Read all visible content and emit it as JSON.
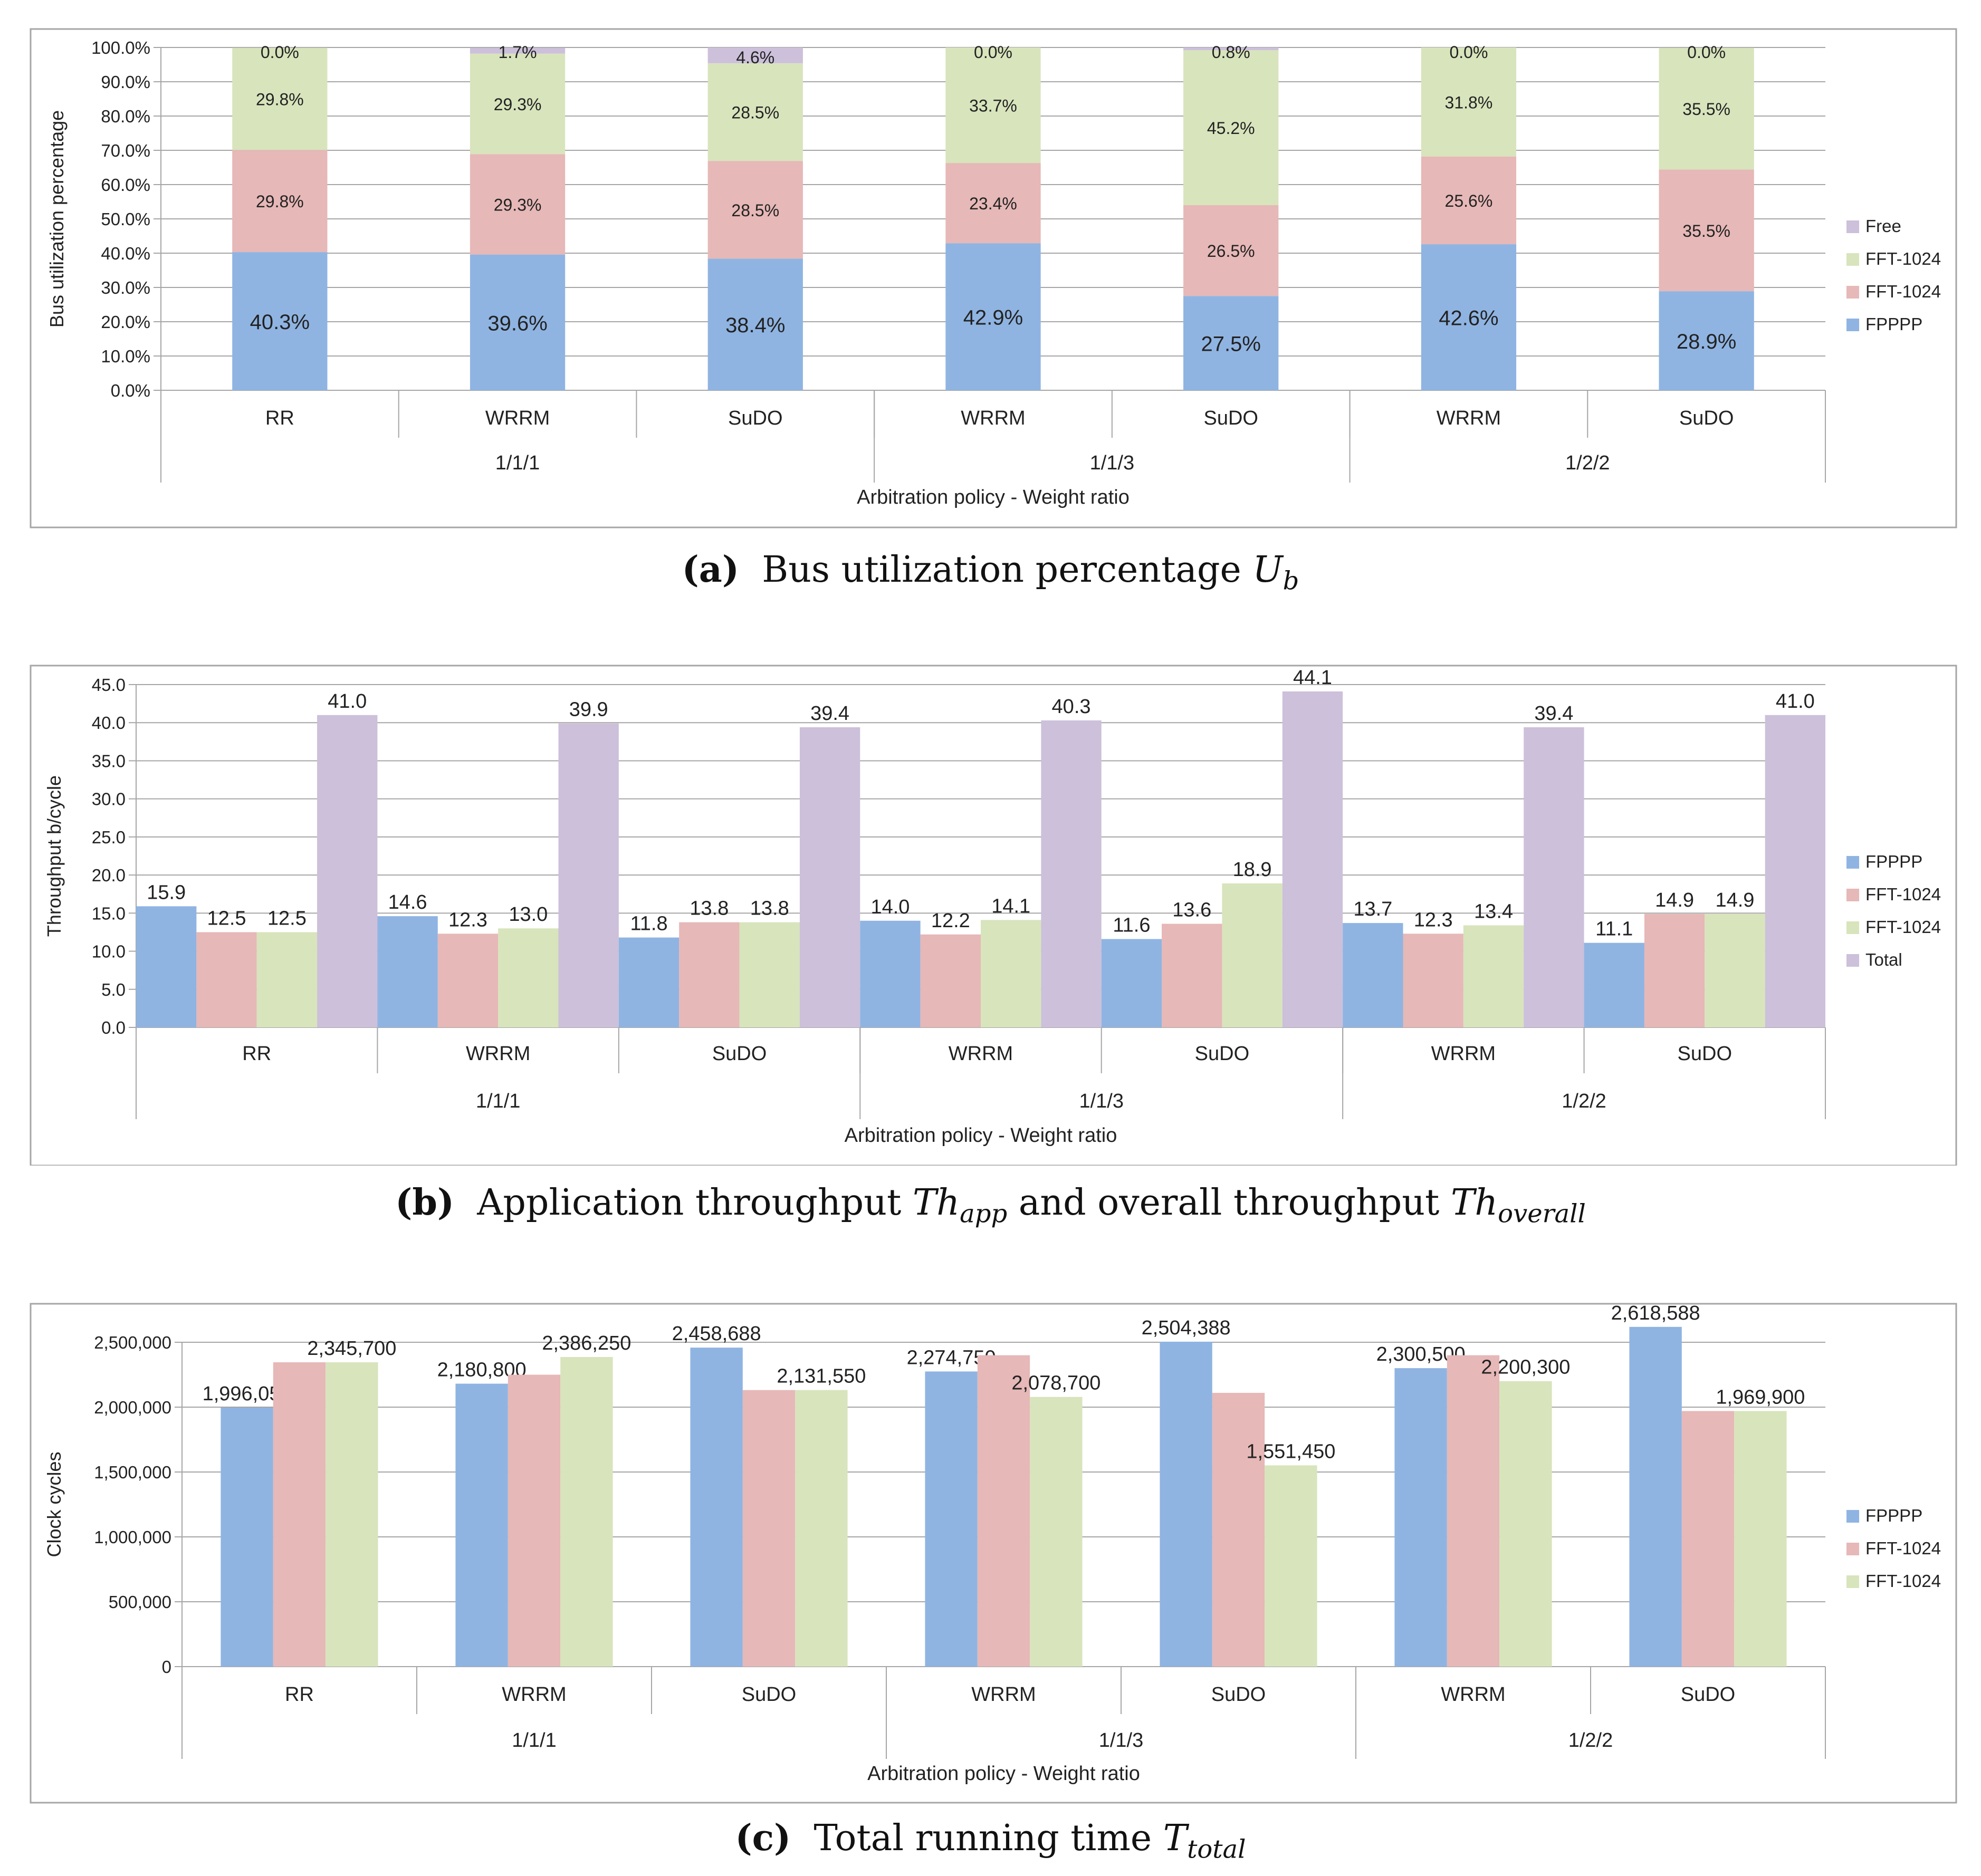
{
  "colors": {
    "FPPPP": "#8fb4e2",
    "FFT1": "#e6b8b7",
    "FFT2": "#d8e4bc",
    "Free": "#ccc0da",
    "Total": "#ccc0da",
    "grid": "#a6a6a6",
    "frame": "#a6a6a6"
  },
  "captions": {
    "a": {
      "letter": "(a)",
      "text": "Bus utilization percentage",
      "sym": "U",
      "sub": "b"
    },
    "b": {
      "letter": "(b)",
      "text1": "Application throughput",
      "sym1": "Th",
      "sub1": "app",
      "text2": "and overall throughput",
      "sym2": "Th",
      "sub2": "overall"
    },
    "c": {
      "letter": "(c)",
      "text": "Total running time",
      "sym": "T",
      "sub": "total"
    }
  },
  "chart_data": [
    {
      "id": "a",
      "type": "bar",
      "stacked": true,
      "categories": [
        "RR",
        "WRRM",
        "SuDO",
        "WRRM",
        "SuDO",
        "WRRM",
        "SuDO"
      ],
      "groups": [
        {
          "label": "1/1/1",
          "span": 3
        },
        {
          "label": "1/1/3",
          "span": 2
        },
        {
          "label": "1/2/2",
          "span": 2
        }
      ],
      "series": [
        {
          "name": "FPPPP",
          "color": "FPPPP",
          "values": [
            40.3,
            39.6,
            38.4,
            42.9,
            27.5,
            42.6,
            28.9
          ],
          "labels": [
            "40.3%",
            "39.6%",
            "38.4%",
            "42.9%",
            "27.5%",
            "42.6%",
            "28.9%"
          ]
        },
        {
          "name": "FFT-1024",
          "color": "FFT1",
          "values": [
            29.8,
            29.3,
            28.5,
            23.4,
            26.5,
            25.6,
            35.5
          ],
          "labels": [
            "29.8%",
            "29.3%",
            "28.5%",
            "23.4%",
            "26.5%",
            "25.6%",
            "35.5%"
          ]
        },
        {
          "name": "FFT-1024",
          "color": "FFT2",
          "values": [
            29.8,
            29.3,
            28.5,
            33.7,
            45.2,
            31.8,
            35.5
          ],
          "labels": [
            "29.8%",
            "29.3%",
            "28.5%",
            "33.7%",
            "45.2%",
            "31.8%",
            "35.5%"
          ]
        },
        {
          "name": "Free",
          "color": "Free",
          "values": [
            0.0,
            1.7,
            4.6,
            0.0,
            0.8,
            0.0,
            0.0
          ],
          "labels": [
            "0.0%",
            "1.7%",
            "4.6%",
            "0.0%",
            "0.8%",
            "0.0%",
            "0.0%"
          ]
        }
      ],
      "yticks": [
        "0.0%",
        "10.0%",
        "20.0%",
        "30.0%",
        "40.0%",
        "50.0%",
        "60.0%",
        "70.0%",
        "80.0%",
        "90.0%",
        "100.0%"
      ],
      "ylim": [
        0,
        100
      ],
      "ylabel": "Bus utilization percentage",
      "xlabel": "Arbitration policy - Weight ratio",
      "legend_order": [
        3,
        2,
        1,
        0
      ],
      "legend_position": "right"
    },
    {
      "id": "b",
      "type": "bar",
      "stacked": false,
      "categories": [
        "RR",
        "WRRM",
        "SuDO",
        "WRRM",
        "SuDO",
        "WRRM",
        "SuDO"
      ],
      "groups": [
        {
          "label": "1/1/1",
          "span": 3
        },
        {
          "label": "1/1/3",
          "span": 2
        },
        {
          "label": "1/2/2",
          "span": 2
        }
      ],
      "series": [
        {
          "name": "FPPPP",
          "color": "FPPPP",
          "values": [
            15.9,
            14.6,
            11.8,
            14.0,
            11.6,
            13.7,
            11.1
          ],
          "labels": [
            "15.9",
            "14.6",
            "11.8",
            "14.0",
            "11.6",
            "13.7",
            "11.1"
          ]
        },
        {
          "name": "FFT-1024",
          "color": "FFT1",
          "values": [
            12.5,
            12.3,
            13.8,
            12.2,
            13.6,
            12.3,
            14.9
          ],
          "labels": [
            "12.5",
            "12.3",
            "13.8",
            "12.2",
            "13.6",
            "12.3",
            "14.9"
          ]
        },
        {
          "name": "FFT-1024",
          "color": "FFT2",
          "values": [
            12.5,
            13.0,
            13.8,
            14.1,
            18.9,
            13.4,
            14.9
          ],
          "labels": [
            "12.5",
            "13.0",
            "13.8",
            "14.1",
            "18.9",
            "13.4",
            "14.9"
          ]
        },
        {
          "name": "Total",
          "color": "Total",
          "values": [
            41.0,
            39.9,
            39.4,
            40.3,
            44.1,
            39.4,
            41.0
          ],
          "labels": [
            "41.0",
            "39.9",
            "39.4",
            "40.3",
            "44.1",
            "39.4",
            "41.0"
          ]
        }
      ],
      "yticks": [
        "0.0",
        "5.0",
        "10.0",
        "15.0",
        "20.0",
        "25.0",
        "30.0",
        "35.0",
        "40.0",
        "45.0"
      ],
      "ylim": [
        0,
        45
      ],
      "ylabel": "Throughput b/cycle",
      "xlabel": "Arbitration policy - Weight ratio",
      "legend_order": [
        0,
        1,
        2,
        3
      ],
      "legend_position": "right"
    },
    {
      "id": "c",
      "type": "bar",
      "stacked": false,
      "categories": [
        "RR",
        "WRRM",
        "SuDO",
        "WRRM",
        "SuDO",
        "WRRM",
        "SuDO"
      ],
      "groups": [
        {
          "label": "1/1/1",
          "span": 3
        },
        {
          "label": "1/1/3",
          "span": 2
        },
        {
          "label": "1/2/2",
          "span": 2
        }
      ],
      "series": [
        {
          "name": "FPPPP",
          "color": "FPPPP",
          "values": [
            1996050,
            2180800,
            2458688,
            2274750,
            2504388,
            2300500,
            2618588
          ],
          "labels": [
            "1,996,050",
            "2,180,800",
            "2,458,688",
            "2,274,750",
            "2,504,388",
            "2,300,500",
            "2,618,588"
          ]
        },
        {
          "name": "FFT-1024",
          "color": "FFT1",
          "values": [
            2345700,
            2250000,
            2131550,
            2400000,
            2110000,
            2400000,
            1969900
          ],
          "labels": []
        },
        {
          "name": "FFT-1024",
          "color": "FFT2",
          "values": [
            2345700,
            2386250,
            2131550,
            2078700,
            1551450,
            2200300,
            1969900
          ],
          "labels": [
            "2,345,700",
            "2,386,250",
            "2,131,550",
            "2,078,700",
            "1,551,450",
            "2,200,300",
            "1,969,900"
          ]
        }
      ],
      "yticks": [
        "0",
        "500,000",
        "1,000,000",
        "1,500,000",
        "2,000,000",
        "2,500,000"
      ],
      "ylim": [
        0,
        2500000
      ],
      "ylabel": "Clock cycles",
      "xlabel": "Arbitration policy -  Weight ratio",
      "legend_order": [
        0,
        1,
        2
      ],
      "legend_position": "right"
    }
  ]
}
